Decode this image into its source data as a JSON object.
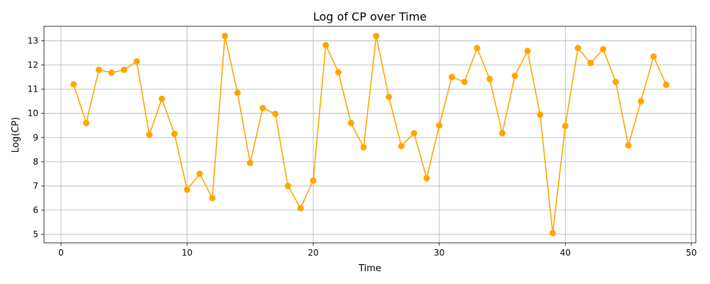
{
  "chart_data": {
    "type": "line",
    "title": "Log of CP over Time",
    "xlabel": "Time",
    "ylabel": "Log(CP)",
    "xlim": [
      -1.35,
      50.35
    ],
    "ylim": [
      4.65,
      13.6
    ],
    "xticks": [
      0,
      10,
      20,
      30,
      40,
      50
    ],
    "yticks": [
      5,
      6,
      7,
      8,
      9,
      10,
      11,
      12,
      13
    ],
    "grid": true,
    "color": "#ffa500",
    "marker": "circle",
    "x": [
      1,
      2,
      3,
      4,
      5,
      6,
      7,
      8,
      9,
      10,
      11,
      12,
      13,
      14,
      15,
      16,
      17,
      18,
      19,
      20,
      21,
      22,
      23,
      24,
      25,
      26,
      27,
      28,
      29,
      30,
      31,
      32,
      33,
      34,
      35,
      36,
      37,
      38,
      39,
      40,
      41,
      42,
      43,
      44,
      45,
      46,
      47,
      48
    ],
    "y": [
      11.2,
      9.6,
      11.8,
      11.68,
      11.8,
      12.15,
      9.12,
      10.6,
      9.15,
      6.85,
      7.5,
      6.5,
      13.2,
      10.85,
      7.95,
      10.22,
      9.98,
      7.0,
      6.08,
      7.22,
      12.82,
      11.7,
      9.6,
      8.6,
      13.2,
      10.68,
      8.65,
      9.18,
      7.32,
      9.5,
      11.5,
      11.3,
      12.7,
      11.42,
      9.18,
      11.55,
      12.58,
      9.95,
      5.05,
      9.48,
      12.7,
      12.08,
      12.65,
      11.3,
      8.68,
      10.5,
      12.35,
      11.18
    ]
  }
}
